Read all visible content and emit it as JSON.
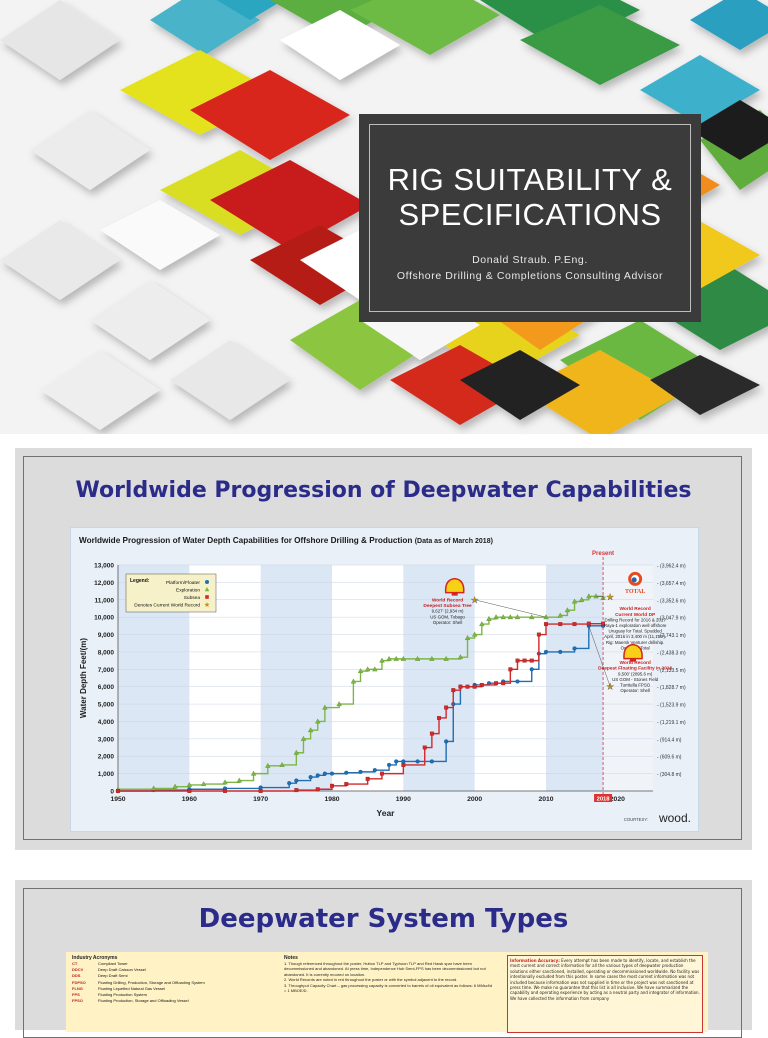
{
  "slide1": {
    "title_line1": "RIG SUITABILITY &",
    "title_line2": "SPECIFICATIONS",
    "author": "Donald Straub. P.Eng.",
    "role": "Offshore Drilling & Completions Consulting Advisor"
  },
  "slide2": {
    "heading": "Worldwide Progression of Deepwater Capabilities",
    "chart_title": "Worldwide Progression of Water Depth Capabilities for Offshore Drilling & Production",
    "chart_title_note": "(Data as of March 2018)",
    "present_label": "Present",
    "year_label_2018": "2018",
    "courtesy": "COURTESY:",
    "brand": "wood.",
    "legend": {
      "title": "Legend:",
      "items": [
        "Platform/Floater",
        "Exploration",
        "Subsea",
        "Denotes Current World Record"
      ]
    },
    "callouts": {
      "shell_subsea": [
        "World Record",
        "Deepest Subsea Tree",
        "9,627' (2,934 m)",
        "US GOM, Tobago",
        "Operator: Shell"
      ],
      "total": [
        "World Record",
        "Current World DP",
        "Drilling Record for 2016 & 2017",
        "Raya-1 exploration well offshore",
        "Uruguay for Total. Spudded",
        "April, 2016 in 3,400 m (11,155').",
        "Rig: Maersk Venturer drillship.",
        "Operator: Total"
      ],
      "shell_floating": [
        "World Record",
        "Deepest Floating Facility in 2016",
        "9,500' (2895.6 m)",
        "US GOM - Stones Field",
        "Turritella FPSO",
        "Operator: Shell"
      ]
    },
    "logos": {
      "shell": "SHELL",
      "total": "TOTAL"
    }
  },
  "chart_data": {
    "type": "line",
    "title": "Worldwide Progression of Water Depth Capabilities for Offshore Drilling & Production",
    "xlabel": "Year",
    "ylabel": "Water Depth Feet/(m)",
    "xlim": [
      1950,
      2025
    ],
    "ylim": [
      0,
      13000
    ],
    "x_ticks": [
      1950,
      1960,
      1970,
      1980,
      1990,
      2000,
      2010,
      2020
    ],
    "y_ticks": [
      "0",
      "1,000",
      "2,000",
      "3,000",
      "4,000",
      "5,000",
      "6,000",
      "7,000",
      "8,000",
      "9,000",
      "10,000",
      "11,000",
      "12,000",
      "13,000"
    ],
    "right_ticks": [
      "(304.8 m)",
      "(609.6 m)",
      "(914.4 m)",
      "(1,219.1 m)",
      "(1,523.9 m)",
      "(1,828.7 m)",
      "(2,133.5 m)",
      "(2,438.3 m)",
      "(2,743.1 m)",
      "(3,047.9 m)",
      "(3,352.6 m)",
      "(3,657.4 m)",
      "(3,962.4 m)"
    ],
    "grid": true,
    "legend_position": "top-left",
    "series": [
      {
        "name": "Platform/Floater",
        "color": "#1f6fb5",
        "marker": "circle",
        "x": [
          1950,
          1955,
          1960,
          1965,
          1970,
          1974,
          1975,
          1977,
          1978,
          1979,
          1980,
          1982,
          1984,
          1986,
          1988,
          1989,
          1990,
          1992,
          1994,
          1996,
          1997,
          1998,
          2000,
          2002,
          2004,
          2006,
          2008,
          2009,
          2010,
          2012,
          2014,
          2016,
          2018
        ],
        "y": [
          0,
          50,
          100,
          150,
          200,
          450,
          600,
          800,
          900,
          1000,
          1000,
          1050,
          1100,
          1200,
          1500,
          1700,
          1700,
          1700,
          1700,
          2850,
          5000,
          6000,
          6100,
          6200,
          6300,
          6300,
          7000,
          7900,
          8000,
          8000,
          8200,
          9500,
          9500
        ]
      },
      {
        "name": "Exploration",
        "color": "#7db743",
        "marker": "triangle",
        "x": [
          1950,
          1955,
          1958,
          1960,
          1962,
          1965,
          1967,
          1969,
          1971,
          1973,
          1975,
          1976,
          1977,
          1978,
          1979,
          1981,
          1983,
          1984,
          1985,
          1986,
          1987,
          1988,
          1989,
          1990,
          1992,
          1994,
          1996,
          1998,
          1999,
          2000,
          2001,
          2002,
          2003,
          2004,
          2005,
          2006,
          2008,
          2010,
          2012,
          2013,
          2014,
          2015,
          2016,
          2017,
          2018
        ],
        "y": [
          100,
          150,
          250,
          350,
          400,
          500,
          600,
          1000,
          1450,
          1500,
          2200,
          3000,
          3500,
          4000,
          4800,
          5000,
          6300,
          6900,
          7000,
          7000,
          7500,
          7600,
          7600,
          7600,
          7600,
          7600,
          7600,
          7700,
          8800,
          9000,
          9600,
          9900,
          10000,
          10000,
          10000,
          10000,
          10000,
          10000,
          10100,
          10400,
          10900,
          11000,
          11200,
          11200,
          11100
        ]
      },
      {
        "name": "Subsea",
        "color": "#d12a2a",
        "marker": "square",
        "x": [
          1950,
          1960,
          1965,
          1970,
          1975,
          1978,
          1980,
          1982,
          1985,
          1987,
          1990,
          1993,
          1994,
          1995,
          1996,
          1997,
          1998,
          1999,
          2000,
          2001,
          2003,
          2004,
          2005,
          2006,
          2007,
          2008,
          2009,
          2010,
          2012,
          2014,
          2016,
          2018
        ],
        "y": [
          0,
          0,
          0,
          0,
          50,
          100,
          300,
          400,
          700,
          1000,
          1500,
          2500,
          3300,
          4200,
          4800,
          5800,
          6000,
          6000,
          6000,
          6100,
          6200,
          6200,
          7000,
          7500,
          7500,
          7500,
          9000,
          9600,
          9600,
          9600,
          9627,
          9627
        ]
      }
    ],
    "records": [
      {
        "label": "World Record Deepest Subsea Tree",
        "x": 2000,
        "y": 11000
      },
      {
        "label": "World Record Current World DP Drilling Record",
        "x": 2019,
        "y": 11155
      },
      {
        "label": "World Record Deepest Floating Facility",
        "x": 2019,
        "y": 6000
      }
    ],
    "present_year": 2018
  },
  "slide3": {
    "heading": "Deepwater System Types",
    "acronyms_title": "Industry Acronyms",
    "acronyms": [
      {
        "code": "CT",
        "text": "Compliant Tower"
      },
      {
        "code": "DDCV",
        "text": "Deep Draft Caisson Vessel"
      },
      {
        "code": "DDS",
        "text": "Deep Draft Semi"
      },
      {
        "code": "FDPSO",
        "text": "Floating Drilling, Production, Storage and Offloading System"
      },
      {
        "code": "FLNG",
        "text": "Floating Liquefied Natural Gas Vessel"
      },
      {
        "code": "FPS",
        "text": "Floating Production System"
      },
      {
        "code": "FPSO",
        "text": "Floating Production, Storage and Offloading Vessel"
      }
    ],
    "notes_title": "Notes",
    "notes": [
      "1. Though referenced throughout the poster, Hutton TLP and Typhoon TLP and Red Hawk spar have been decommissioned and abandoned. At press time, Independence Hub Semi-FPS has been decommissioned but not abandoned. It is currently moored on location.",
      "2. World Records are noted in red throughout the poster or with the symbol adjacent to the record.",
      "3. Throughput Capacity Chart – gas processing capacity is converted to barrels of oil equivalent as follows: 6 MMscf/d = 1 MBOE/D."
    ],
    "info_title": "Information Accuracy:",
    "info_text": "Every attempt has been made to identify, locate, and establish the most current and correct information for all the various types of deepwater production solutions either sanctioned, installed, operating or decommissioned worldwide. No facility was intentionally excluded from this poster. In some cases the most current information was not included because information was not supplied in time or the project was not sanctioned at press time. We make no guarantee that this list is all inclusive. We have summarized the capability and operating experience by acting as a neutral party and integrator of information. We have collected the information from company"
  }
}
